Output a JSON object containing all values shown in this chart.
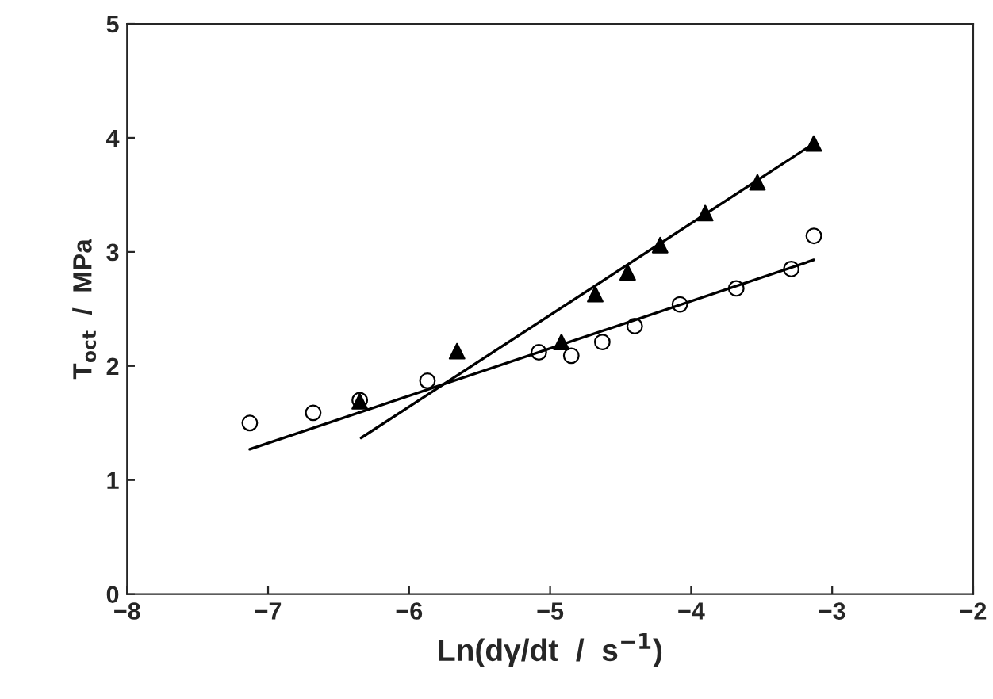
{
  "chart_data": {
    "type": "scatter",
    "xlabel": "Ln(dγ/dt  /  s$^{−1}$)",
    "ylabel": "T$_{oct}$  /  MPa",
    "xlim": [
      -8,
      -2
    ],
    "ylim": [
      0,
      5
    ],
    "xticks": [
      -8,
      -7,
      -6,
      -5,
      -4,
      -3,
      -2
    ],
    "yticks": [
      0,
      1,
      2,
      3,
      4,
      5
    ],
    "grid": false,
    "legend": false,
    "series": [
      {
        "marker": "circle",
        "color": "#000000",
        "x": [
          -7.13,
          -6.68,
          -6.35,
          -5.87,
          -5.08,
          -4.85,
          -4.63,
          -4.4,
          -4.08,
          -3.68,
          -3.29,
          -3.13
        ],
        "values": [
          1.5,
          1.59,
          1.7,
          1.87,
          2.12,
          2.09,
          2.21,
          2.35,
          2.54,
          2.68,
          2.85,
          3.14
        ]
      },
      {
        "marker": "triangle",
        "color": "#000000",
        "x": [
          -6.35,
          -5.66,
          -4.92,
          -4.68,
          -4.45,
          -4.22,
          -3.9,
          -3.53,
          -3.13
        ],
        "values": [
          1.69,
          2.13,
          2.21,
          2.63,
          2.82,
          3.06,
          3.34,
          3.61,
          3.95
        ]
      },
      {
        "type": "line",
        "marker": "none",
        "line_style": "solid",
        "color": "#000000",
        "x": [
          -7.13,
          -3.13
        ],
        "values": [
          1.27,
          2.93
        ]
      },
      {
        "type": "line",
        "marker": "none",
        "line_style": "solid",
        "color": "#000000",
        "x": [
          -6.34,
          -3.13
        ],
        "values": [
          1.37,
          3.95
        ]
      }
    ]
  }
}
